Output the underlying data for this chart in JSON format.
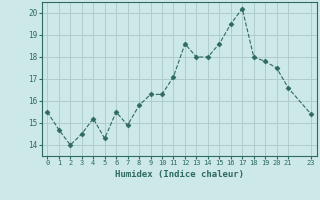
{
  "x": [
    0,
    1,
    2,
    3,
    4,
    5,
    6,
    7,
    8,
    9,
    10,
    11,
    12,
    13,
    14,
    15,
    16,
    17,
    18,
    19,
    20,
    21,
    23
  ],
  "y": [
    15.5,
    14.7,
    14.0,
    14.5,
    15.2,
    14.3,
    15.5,
    14.9,
    15.8,
    16.3,
    16.3,
    17.1,
    18.6,
    18.0,
    18.0,
    18.6,
    19.5,
    20.2,
    18.0,
    17.8,
    17.5,
    16.6,
    15.4
  ],
  "line_color": "#2e6b5e",
  "marker": "D",
  "marker_size": 2.5,
  "bg_color": "#cce8e8",
  "grid_color": "#b0cccc",
  "xlabel": "Humidex (Indice chaleur)",
  "ylim": [
    13.5,
    20.5
  ],
  "xlim": [
    -0.5,
    23.5
  ],
  "yticks": [
    14,
    15,
    16,
    17,
    18,
    19,
    20
  ],
  "xticks": [
    0,
    1,
    2,
    3,
    4,
    5,
    6,
    7,
    8,
    9,
    10,
    11,
    12,
    13,
    14,
    15,
    16,
    17,
    18,
    19,
    20,
    21,
    23
  ],
  "xtick_labels": [
    "0",
    "1",
    "2",
    "3",
    "4",
    "5",
    "6",
    "7",
    "8",
    "9",
    "10",
    "11",
    "12",
    "13",
    "14",
    "15",
    "16",
    "17",
    "18",
    "19",
    "20",
    "21",
    "23"
  ]
}
